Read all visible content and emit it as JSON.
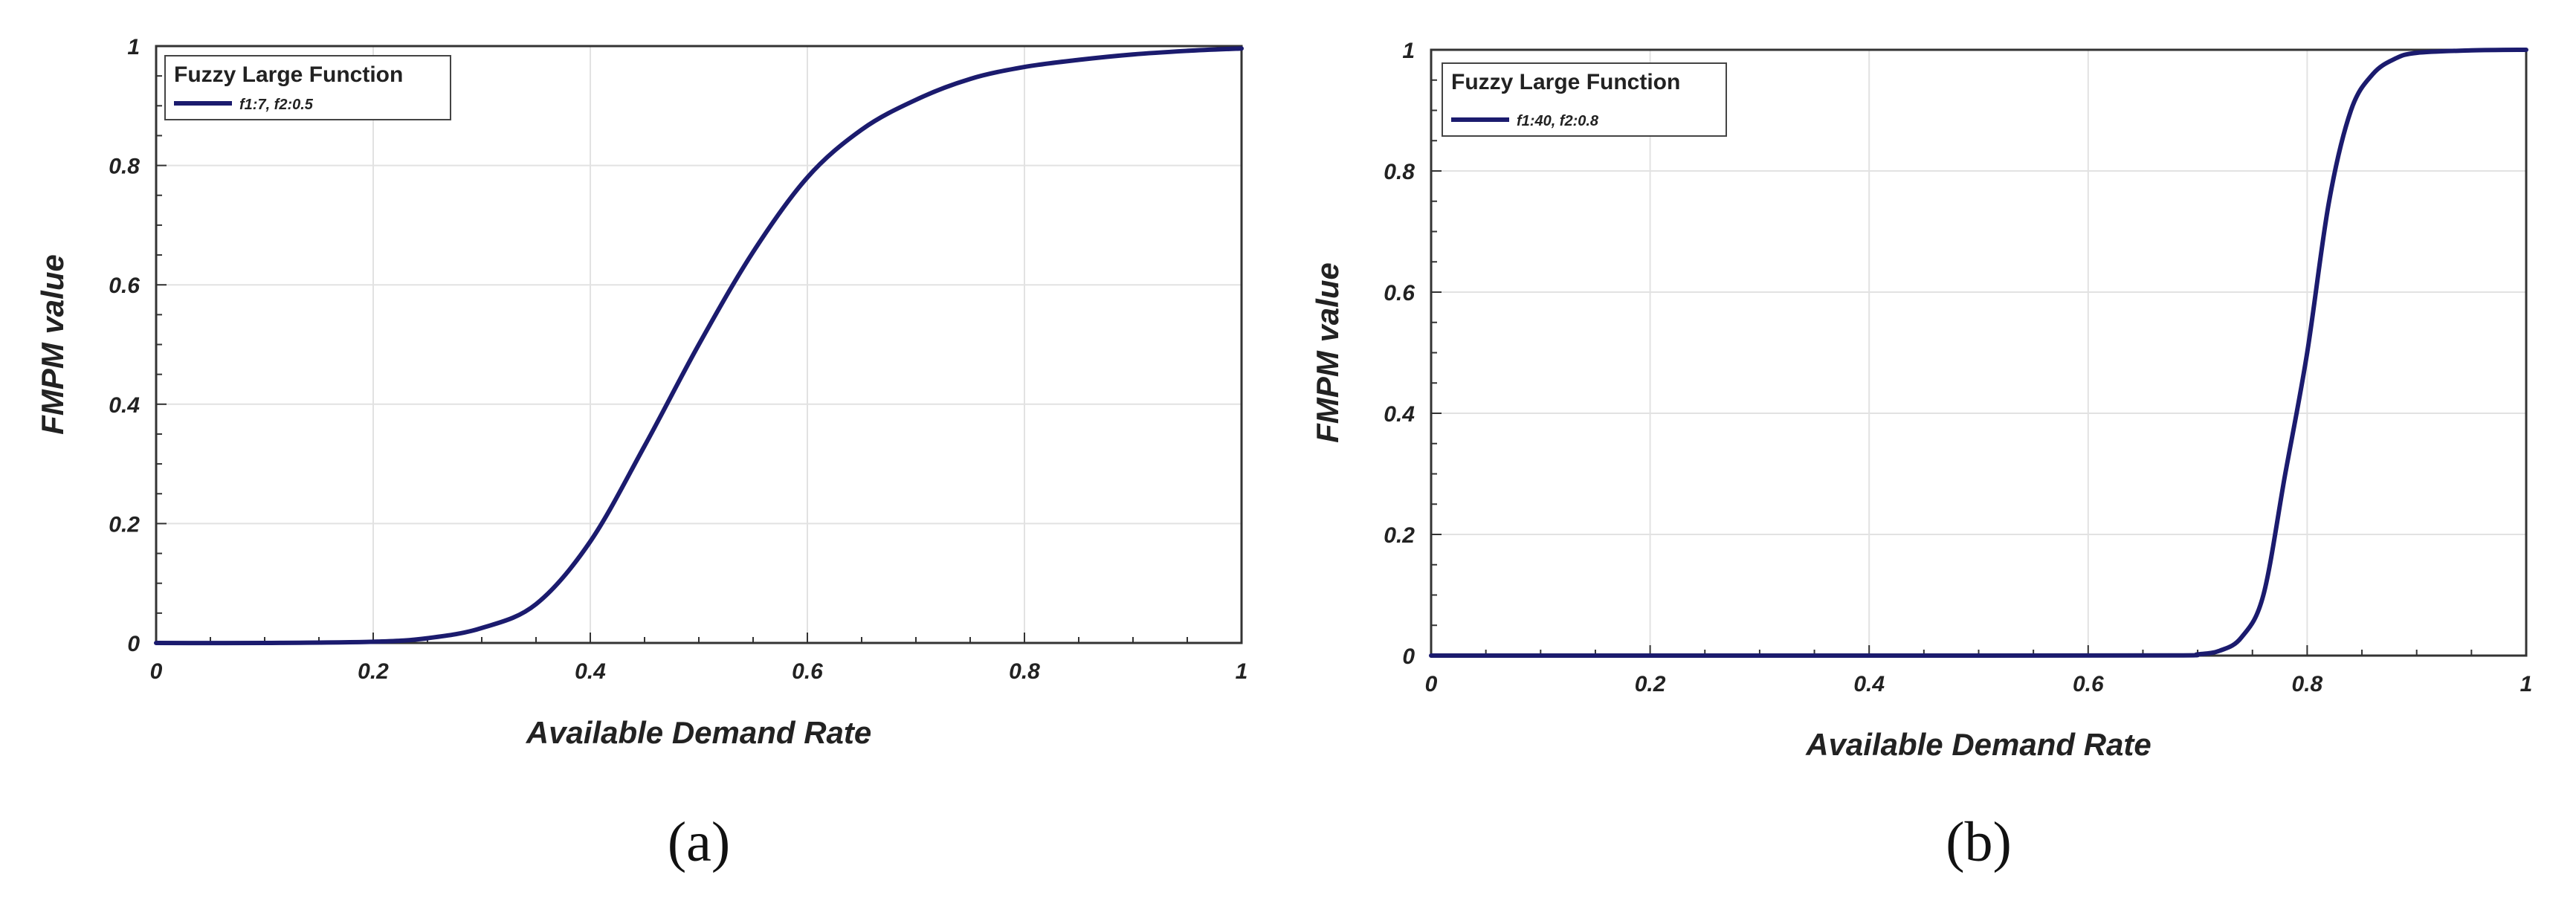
{
  "chart_data": [
    {
      "type": "line",
      "panel_label": "(a)",
      "xlabel": "Available Demand Rate",
      "ylabel": "FMPM value",
      "xlim": [
        0,
        1
      ],
      "ylim": [
        0,
        1
      ],
      "x_ticks": [
        "0",
        "0.2",
        "0.4",
        "0.6",
        "0.8",
        "1"
      ],
      "y_ticks": [
        "0",
        "0.2",
        "0.4",
        "0.6",
        "0.8",
        "1"
      ],
      "grid": true,
      "legend": {
        "title": "Fuzzy Large Function",
        "placement": "top-left"
      },
      "line_color": "#1b1b6e",
      "series": [
        {
          "name": "f1:7, f2:0.5",
          "x": [
            0,
            0.1,
            0.2,
            0.25,
            0.3,
            0.35,
            0.4,
            0.45,
            0.5,
            0.55,
            0.6,
            0.65,
            0.7,
            0.75,
            0.8,
            0.85,
            0.9,
            0.95,
            1.0
          ],
          "y": [
            0,
            0,
            0.002,
            0.008,
            0.025,
            0.065,
            0.17,
            0.33,
            0.5,
            0.655,
            0.78,
            0.86,
            0.91,
            0.945,
            0.965,
            0.977,
            0.986,
            0.992,
            0.996
          ]
        }
      ]
    },
    {
      "type": "line",
      "panel_label": "(b)",
      "xlabel": "Available Demand Rate",
      "ylabel": "FMPM value",
      "xlim": [
        0,
        1
      ],
      "ylim": [
        0,
        1
      ],
      "x_ticks": [
        "0",
        "0.2",
        "0.4",
        "0.6",
        "0.8",
        "1"
      ],
      "y_ticks": [
        "0",
        "0.2",
        "0.4",
        "0.6",
        "0.8",
        "1"
      ],
      "grid": true,
      "legend": {
        "title": "Fuzzy Large Function",
        "placement": "top-left"
      },
      "line_color": "#1b1b6e",
      "series": [
        {
          "name": "f1:40, f2:0.8",
          "x": [
            0,
            0.5,
            0.68,
            0.7,
            0.72,
            0.74,
            0.76,
            0.78,
            0.8,
            0.82,
            0.84,
            0.86,
            0.88,
            0.9,
            0.95,
            1.0
          ],
          "y": [
            0,
            0,
            0.0003,
            0.002,
            0.008,
            0.03,
            0.1,
            0.3,
            0.5,
            0.75,
            0.9,
            0.96,
            0.985,
            0.995,
            0.999,
            1.0
          ]
        }
      ]
    }
  ]
}
